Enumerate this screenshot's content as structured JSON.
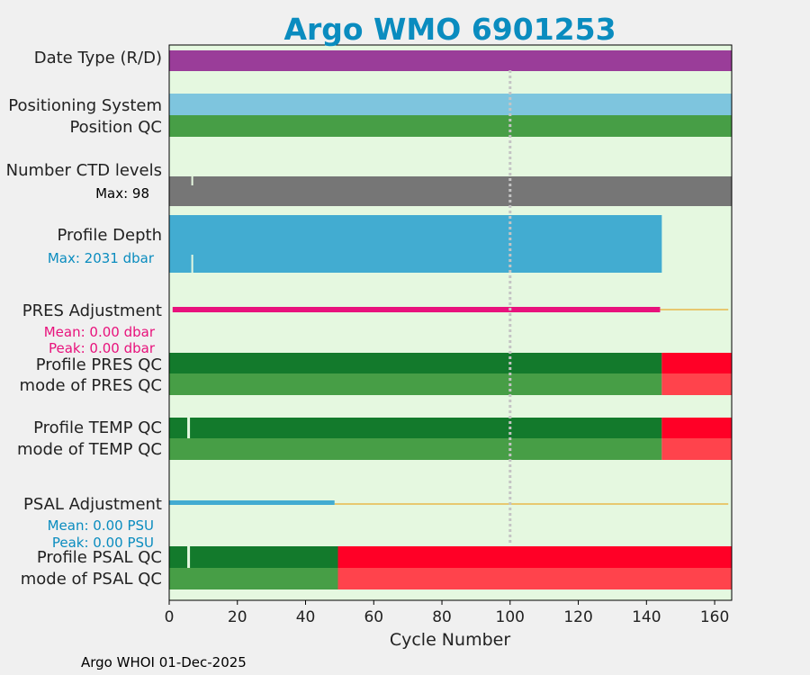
{
  "chart_data": {
    "type": "bar",
    "title": "Argo WMO 6901253",
    "xlabel": "Cycle Number",
    "xlim": [
      0,
      165
    ],
    "xticks": [
      0,
      20,
      40,
      60,
      80,
      100,
      120,
      140,
      160
    ],
    "footer": "Argo WHOI 01-Dec-2025",
    "reference_line_x": 100,
    "colors": {
      "background": "#e5f8e0",
      "title": "#0a8cbf",
      "date_type": "#9a3d99",
      "positioning": "#7ec5de",
      "qc_good_dark": "#137a2c",
      "qc_good_light": "#479e46",
      "qc_bad_dark": "#ff0026",
      "qc_bad_light": "#ff434c",
      "ctd_levels": "#767676",
      "profile_depth": "#42acd1",
      "pres_adjust": "#e8127c",
      "psal_adjust": "#42acd1",
      "zero_line": "#e8b84a"
    },
    "rows": {
      "date_type": {
        "label": "Date Type (R/D)",
        "x": [
          0,
          165
        ]
      },
      "positioning": {
        "label": "Positioning System",
        "x": [
          0,
          165
        ]
      },
      "position_qc": {
        "label": "Position QC",
        "x": [
          0,
          165
        ]
      },
      "ctd_levels": {
        "label": "Number CTD levels",
        "max_text": "Max: 98",
        "x": [
          0,
          165
        ]
      },
      "profile_depth": {
        "label": "Profile Depth",
        "max_text": "Max: 2031 dbar",
        "x": [
          0,
          144.5
        ]
      },
      "pres_adjust": {
        "label": "PRES Adjustment",
        "mean_text": "Mean: 0.00 dbar",
        "peak_text": "Peak: 0.00 dbar",
        "x": [
          1,
          144
        ],
        "zero_line_x": [
          144,
          164
        ]
      },
      "profile_pres_qc": {
        "label": "Profile PRES QC",
        "good": [
          0,
          144.5
        ],
        "bad": [
          144.5,
          165
        ]
      },
      "mode_pres_qc": {
        "label": "mode of PRES QC",
        "good": [
          0,
          144.5
        ],
        "bad": [
          144.5,
          165
        ]
      },
      "profile_temp_qc": {
        "label": "Profile TEMP QC",
        "good": [
          0,
          144.5
        ],
        "bad": [
          144.5,
          165
        ]
      },
      "mode_temp_qc": {
        "label": "mode of TEMP QC",
        "good": [
          0,
          144.5
        ],
        "bad": [
          144.5,
          165
        ]
      },
      "psal_adjust": {
        "label": "PSAL Adjustment",
        "mean_text": "Mean: 0.00 PSU",
        "peak_text": "Peak: 0.00 PSU",
        "x": [
          0,
          48.5
        ],
        "zero_line_x": [
          48.5,
          164
        ]
      },
      "profile_psal_qc": {
        "label": "Profile PSAL QC",
        "good": [
          0,
          49.5
        ],
        "bad": [
          49.5,
          165
        ]
      },
      "mode_psal_qc": {
        "label": "mode of PSAL QC",
        "good": [
          0,
          49.5
        ],
        "bad": [
          49.5,
          165
        ]
      }
    }
  }
}
